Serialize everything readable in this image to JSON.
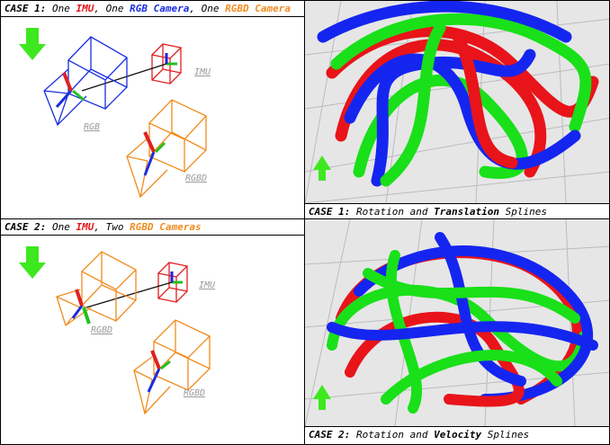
{
  "top_left": {
    "caption": [
      "CASE 1:",
      "One",
      "IMU",
      ", One",
      "RGB Camera",
      ", One",
      "RGBD Camera"
    ],
    "labels": [
      "IMU",
      "RGB",
      "RGBD"
    ]
  },
  "top_right": {
    "caption": [
      "CASE 1:",
      "Rotation and",
      "Translation",
      "Splines"
    ]
  },
  "bottom_left": {
    "caption": [
      "CASE 2:",
      "One",
      "IMU",
      ", Two",
      "RGBD Cameras"
    ],
    "labels": [
      "IMU",
      "RGBD",
      "RGBD"
    ]
  },
  "bottom_right": {
    "caption": [
      "CASE 2:",
      "Rotation and",
      "Velocity",
      "Splines"
    ]
  }
}
